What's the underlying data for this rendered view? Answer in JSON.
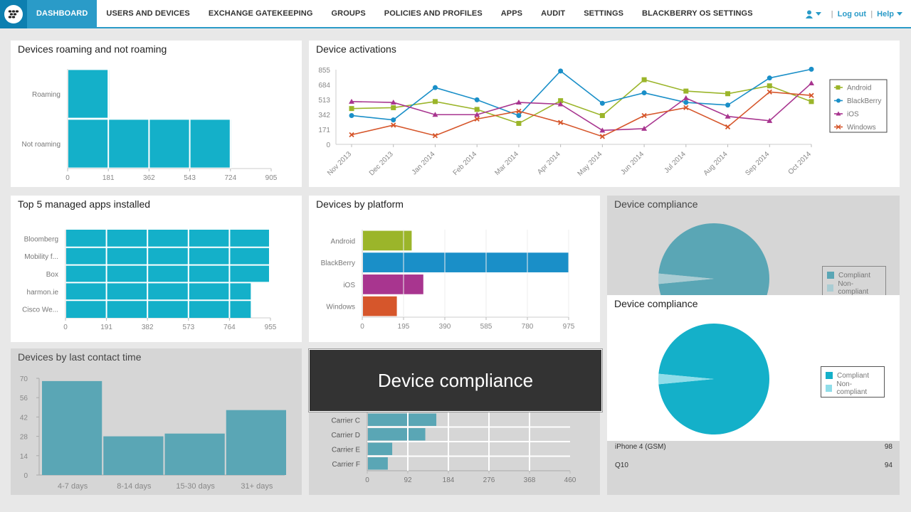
{
  "nav": {
    "items": [
      {
        "label": "DASHBOARD",
        "active": true
      },
      {
        "label": "USERS AND DEVICES"
      },
      {
        "label": "EXCHANGE GATEKEEPING"
      },
      {
        "label": "GROUPS"
      },
      {
        "label": "POLICIES AND PROFILES"
      },
      {
        "label": "APPS"
      },
      {
        "label": "AUDIT"
      },
      {
        "label": "SETTINGS"
      },
      {
        "label": "BLACKBERRY OS SETTINGS"
      }
    ],
    "logout": "Log out",
    "help": "Help"
  },
  "colors": {
    "teal": "#14b0c9",
    "android": "#9bb52a",
    "blackberry": "#1a8fc8",
    "ios": "#a8358f",
    "windows": "#d6562b",
    "dim_bar": "#5aa6b5"
  },
  "overlay": {
    "text": "Device compliance"
  },
  "chart_data": [
    {
      "id": "roaming",
      "type": "bar",
      "orientation": "horizontal",
      "title": "Devices roaming and not roaming",
      "categories": [
        "Roaming",
        "Not roaming"
      ],
      "values": [
        181,
        724
      ],
      "ticks": [
        "0",
        "181",
        "362",
        "543",
        "724",
        "905"
      ],
      "xlim": [
        0,
        905
      ]
    },
    {
      "id": "activations",
      "type": "line",
      "title": "Device activations",
      "x": [
        "Nov 2013",
        "Dec 2013",
        "Jan 2014",
        "Feb 2014",
        "Mar 2014",
        "Apr 2014",
        "May 2014",
        "Jun 2014",
        "Jul 2014",
        "Aug 2014",
        "Sep 2014",
        "Oct 2014"
      ],
      "yticks": [
        "0",
        "171",
        "342",
        "513",
        "684",
        "855"
      ],
      "ylim": [
        0,
        855
      ],
      "legend_position": "right",
      "series": [
        {
          "name": "Android",
          "color": "#9bb52a",
          "marker": "square",
          "values": [
            410,
            420,
            490,
            400,
            240,
            500,
            330,
            740,
            610,
            580,
            670,
            490
          ]
        },
        {
          "name": "BlackBerry",
          "color": "#1a8fc8",
          "marker": "circle",
          "values": [
            330,
            280,
            650,
            510,
            330,
            840,
            470,
            590,
            480,
            450,
            760,
            860
          ]
        },
        {
          "name": "iOS",
          "color": "#a8358f",
          "marker": "triangle",
          "values": [
            490,
            480,
            340,
            340,
            480,
            460,
            160,
            180,
            530,
            320,
            270,
            700
          ]
        },
        {
          "name": "Windows",
          "color": "#d6562b",
          "marker": "x",
          "values": [
            110,
            220,
            100,
            290,
            380,
            250,
            90,
            330,
            420,
            200,
            600,
            560
          ]
        }
      ]
    },
    {
      "id": "top_apps",
      "type": "bar",
      "orientation": "horizontal",
      "title": "Top 5 managed apps installed",
      "categories": [
        "Bloomberg",
        "Mobility f...",
        "Box",
        "harmon.ie",
        "Cisco We..."
      ],
      "values": [
        945,
        945,
        945,
        860,
        860
      ],
      "ticks": [
        "0",
        "191",
        "382",
        "573",
        "764",
        "955"
      ],
      "xlim": [
        0,
        955
      ]
    },
    {
      "id": "platform",
      "type": "bar",
      "orientation": "horizontal",
      "title": "Devices by platform",
      "categories": [
        "Android",
        "BlackBerry",
        "iOS",
        "Windows"
      ],
      "values": [
        230,
        970,
        285,
        160
      ],
      "colors": [
        "#9bb52a",
        "#1a8fc8",
        "#a8358f",
        "#d6562b"
      ],
      "ticks": [
        "0",
        "195",
        "390",
        "585",
        "780",
        "975"
      ],
      "xlim": [
        0,
        975
      ]
    },
    {
      "id": "compliance_back",
      "type": "pie",
      "title": "Device compliance",
      "categories": [
        "Compliant",
        "Non-compliant"
      ],
      "values": [
        97,
        3
      ]
    },
    {
      "id": "compliance_front",
      "type": "pie",
      "title": "Device compliance",
      "categories": [
        "Compliant",
        "Non-compliant"
      ],
      "values": [
        97,
        3
      ]
    },
    {
      "id": "last_contact",
      "type": "bar",
      "title": "Devices by last contact time",
      "categories": [
        "4-7 days",
        "8-14 days",
        "15-30 days",
        "31+ days"
      ],
      "values": [
        68,
        28,
        30,
        47
      ],
      "yticks": [
        "0",
        "14",
        "28",
        "42",
        "56",
        "70"
      ],
      "ylim": [
        0,
        70
      ]
    },
    {
      "id": "carriers",
      "type": "bar",
      "orientation": "horizontal",
      "categories": [
        "Carrier C",
        "Carrier D",
        "Carrier E",
        "Carrier F"
      ],
      "values": [
        155,
        130,
        55,
        45
      ],
      "ticks": [
        "0",
        "92",
        "184",
        "276",
        "368",
        "460"
      ],
      "xlim": [
        0,
        460
      ]
    }
  ],
  "device_list": [
    {
      "name": "iPhone 4 (GSM)",
      "count": "98"
    },
    {
      "name": "Q10",
      "count": "94"
    }
  ]
}
